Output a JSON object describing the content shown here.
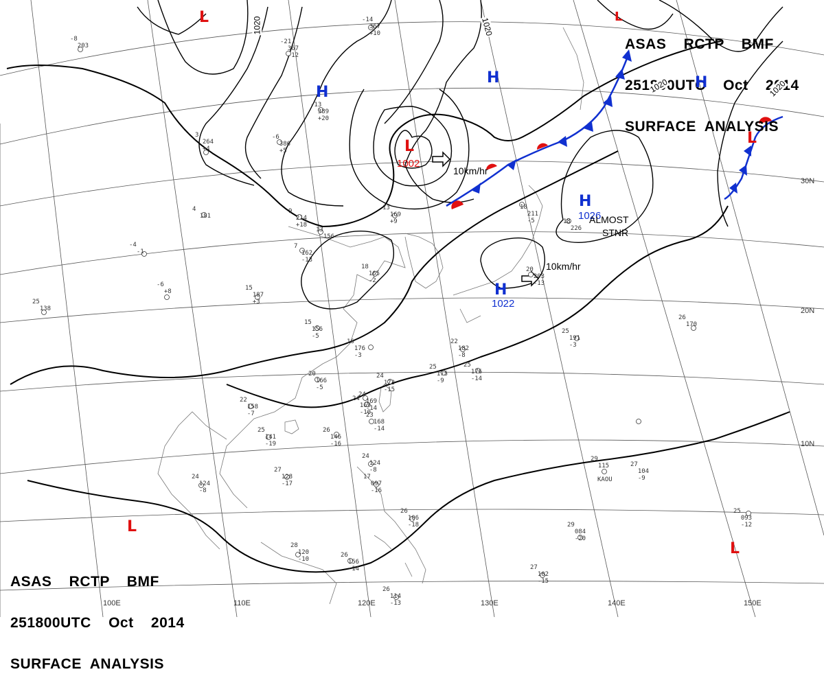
{
  "header": {
    "line1": "ASAS    RCTP    BMF",
    "line2": "251800UTC    Oct    2014",
    "line3": "SURFACE  ANALYSIS"
  },
  "footer": {
    "line1": "ASAS    RCTP    BMF",
    "line2": "251800UTC    Oct    2014",
    "line3": "SURFACE  ANALYSIS"
  },
  "pressure_systems": {
    "low_1002_value": "1002",
    "high_1026_value": "1026",
    "high_1022_value": "1022",
    "H": "H",
    "L": "L"
  },
  "notes": {
    "motion_low": "10km/hr",
    "motion_high": "10km/hr",
    "almost": "ALMOST",
    "stnr": "STNR"
  },
  "isobar_labels": {
    "a": "1020",
    "b": "1020",
    "c": "1020",
    "d": "1020"
  },
  "latitudes": {
    "lat30": "30N",
    "lat20": "20N",
    "lat10": "10N"
  },
  "longitudes": {
    "lon100": "100E",
    "lon110": "110E",
    "lon120": "120E",
    "lon130": "130E",
    "lon140": "140E",
    "lon150": "150E"
  },
  "stations": [
    {
      "t": "15\n  187\n  +3"
    },
    {
      "t": "15\n  156\n  -5"
    },
    {
      "t": "16\n  176\n  -3"
    },
    {
      "t": "20\n  166\n  -5"
    },
    {
      "t": "22\n  158\n  -7"
    },
    {
      "t": "24\n  173\n  -15"
    },
    {
      "t": "25\n  175\n  -9"
    },
    {
      "t": "25\n  176\n  -14"
    },
    {
      "t": "26\n  146\n  -16"
    },
    {
      "t": "27\n  128\n  -17"
    },
    {
      "t": "28\n  120\n  -10"
    },
    {
      "t": "26\n  156\n  -14"
    },
    {
      "t": "29\n  115"
    },
    {
      "t": "27\n  104\n  -9"
    },
    {
      "t": "26\n  170"
    },
    {
      "t": "25\n  191\n  -3"
    },
    {
      "t": "25\n  093\n  -12"
    },
    {
      "t": "29\n  084\n  -20"
    },
    {
      "t": "27\n  102\n  -15"
    },
    {
      "t": "26\n  114\n  -13"
    },
    {
      "t": "24\n  124\n  -8"
    },
    {
      "t": "17\n  097\n  -16"
    },
    {
      "t": "24\n  169\n  -10"
    },
    {
      "t": "23\n  168\n  -14"
    },
    {
      "t": "18\n  165\n  -2"
    },
    {
      "t": "13\n  169\n  +9"
    },
    {
      "t": "7\n  162\n  -13"
    },
    {
      "t": "9\n  214\n  +18"
    },
    {
      "t": "3\n  264\n  +4"
    },
    {
      "t": "-6\n  386\n  +5"
    },
    {
      "t": "-13\n  389\n  +20"
    },
    {
      "t": "-21\n  367\n  -12"
    },
    {
      "t": "-14\n  367\n  +10"
    },
    {
      "t": "-8\n  203"
    },
    {
      "t": "4\n  181"
    },
    {
      "t": "-4\n  -1"
    },
    {
      "t": "-6\n  +8"
    },
    {
      "t": "25\n  138"
    },
    {
      "t": "24\n  124\n  -8"
    },
    {
      "t": "25\n  141\n  -19"
    },
    {
      "t": "22\n  182\n  -8"
    },
    {
      "t": "18\n  211\n  -5"
    },
    {
      "t": "20\n  203\n  -13"
    },
    {
      "t": "18\n  226"
    },
    {
      "t": "13\n  156"
    },
    {
      "t": "24\n  169\n  -14"
    },
    {
      "t": "26\n  106\n  -18"
    },
    {
      "t": "KAOU"
    }
  ],
  "colors": {
    "high": "#1030d0",
    "low": "#e01010",
    "front_cold": "#1030d0",
    "front_warm": "#e01010"
  }
}
